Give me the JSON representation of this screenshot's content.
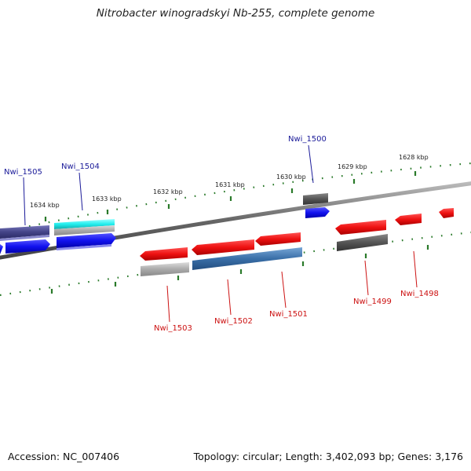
{
  "title": "Nitrobacter winogradskyi Nb-255, complete genome",
  "accession_text": "Accession: NC_007406",
  "topology_text": "Topology: circular; Length: 3,402,093 bp; Genes: 3,176",
  "scale_labels": [
    "1634 kbp",
    "1633 kbp",
    "1632 kbp",
    "1631 kbp",
    "1630 kbp",
    "1629 kbp",
    "1628 kbp"
  ],
  "genes_above": [
    "Nwi_1505",
    "Nwi_1504",
    "Nwi_1500"
  ],
  "genes_below": [
    "Nwi_1503",
    "Nwi_1502",
    "Nwi_1501",
    "Nwi_1499",
    "Nwi_1498"
  ],
  "colors": {
    "red": "#ee1111",
    "blue": "#1111ee",
    "dark_gray": "#555555",
    "light_gray": "#aaaaaa",
    "cyan": "#22eeee",
    "slate_purple": "#444488",
    "steel_blue": "#3a6fa8",
    "tick_green": "#2a7a2a",
    "backbone": "#777777"
  }
}
